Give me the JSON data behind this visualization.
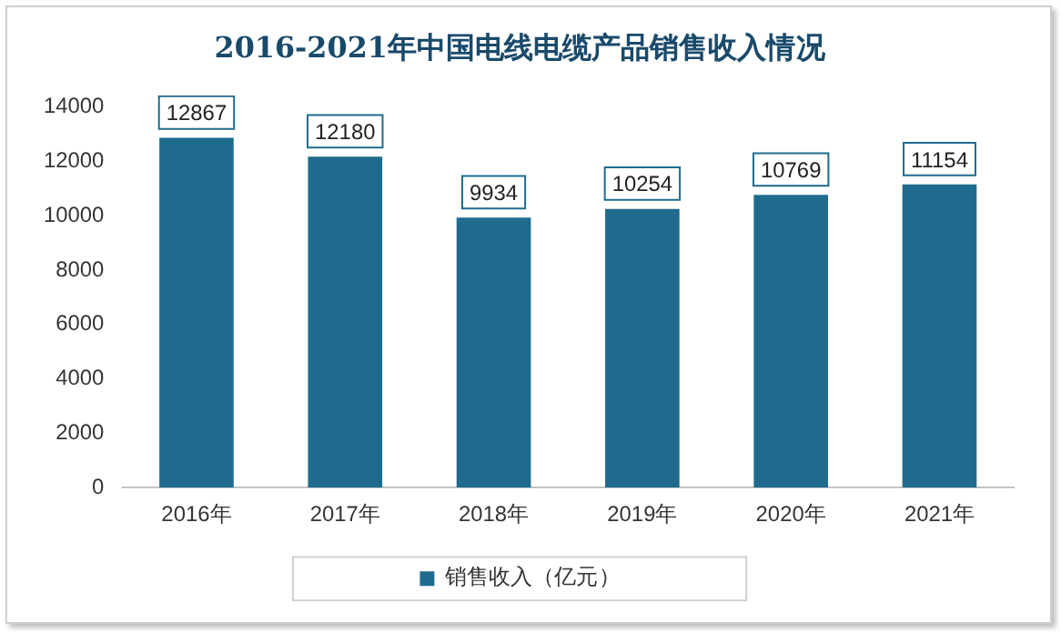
{
  "chart_data": {
    "type": "bar",
    "title": "2016-2021年中国电线电缆产品销售收入情况",
    "categories": [
      "2016年",
      "2017年",
      "2018年",
      "2019年",
      "2020年",
      "2021年"
    ],
    "series": [
      {
        "name": "销售收入（亿元）",
        "color": "#1f6b8e",
        "values": [
          12867,
          12180,
          9934,
          10254,
          10769,
          11154
        ]
      }
    ],
    "ylim": [
      0,
      14000
    ],
    "yticks": [
      0,
      2000,
      4000,
      6000,
      8000,
      10000,
      12000,
      14000
    ],
    "grid": false,
    "legend": "bottom",
    "data_labels": true
  }
}
